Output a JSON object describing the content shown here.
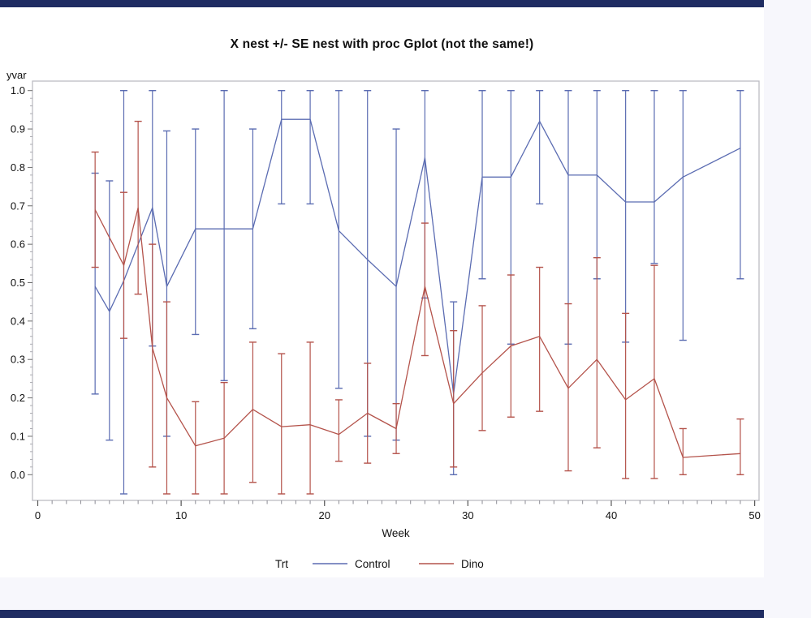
{
  "window": {
    "top_bar_color": "#1f2c62",
    "bottom_bar_color": "#1f2c62",
    "margin_color": "#f7f7fc",
    "page_color": "#ffffff"
  },
  "chart_data": {
    "type": "line",
    "title": "X nest +/- SE nest with proc Gplot (not the same!)",
    "xlabel": "Week",
    "ylabel": "yvar",
    "xlim": [
      0,
      50
    ],
    "ylim": [
      0.0,
      1.0
    ],
    "x_tick_labels": [
      "0",
      "10",
      "20",
      "30",
      "40",
      "50"
    ],
    "x_tick_values": [
      0,
      10,
      20,
      30,
      40,
      50
    ],
    "x_minor_tick_step": 1,
    "y_tick_labels": [
      "0.0",
      "0.1",
      "0.2",
      "0.3",
      "0.4",
      "0.5",
      "0.6",
      "0.7",
      "0.8",
      "0.9",
      "1.0"
    ],
    "y_tick_values": [
      0.0,
      0.1,
      0.2,
      0.3,
      0.4,
      0.5,
      0.6,
      0.7,
      0.8,
      0.9,
      1.0
    ],
    "grid": "off",
    "error_bars": "plus-minus SE with caps",
    "legend": {
      "label": "Trt",
      "position": "bottom-center"
    },
    "series": [
      {
        "name": "Control",
        "color": "#5B6CB2",
        "points": [
          {
            "week": 4,
            "y": 0.49,
            "lo": 0.21,
            "hi": 0.785
          },
          {
            "week": 5,
            "y": 0.425,
            "lo": 0.09,
            "hi": 0.765
          },
          {
            "week": 6,
            "y": 0.505,
            "lo": -0.05,
            "hi": 1.0
          },
          {
            "week": 8,
            "y": 0.695,
            "lo": 0.335,
            "hi": 1.0
          },
          {
            "week": 9,
            "y": 0.49,
            "lo": 0.1,
            "hi": 0.895
          },
          {
            "week": 11,
            "y": 0.64,
            "lo": 0.365,
            "hi": 0.9
          },
          {
            "week": 13,
            "y": 0.64,
            "lo": 0.245,
            "hi": 1.0
          },
          {
            "week": 15,
            "y": 0.64,
            "lo": 0.38,
            "hi": 0.9
          },
          {
            "week": 17,
            "y": 0.925,
            "lo": 0.705,
            "hi": 1.0
          },
          {
            "week": 19,
            "y": 0.925,
            "lo": 0.705,
            "hi": 1.0
          },
          {
            "week": 21,
            "y": 0.635,
            "lo": 0.225,
            "hi": 1.0
          },
          {
            "week": 23,
            "y": 0.56,
            "lo": 0.1,
            "hi": 1.0
          },
          {
            "week": 25,
            "y": 0.49,
            "lo": 0.09,
            "hi": 0.9
          },
          {
            "week": 27,
            "y": 0.825,
            "lo": 0.46,
            "hi": 1.0
          },
          {
            "week": 29,
            "y": 0.21,
            "lo": 0.0,
            "hi": 0.45
          },
          {
            "week": 31,
            "y": 0.775,
            "lo": 0.51,
            "hi": 1.0
          },
          {
            "week": 33,
            "y": 0.775,
            "lo": 0.34,
            "hi": 1.0
          },
          {
            "week": 35,
            "y": 0.92,
            "lo": 0.705,
            "hi": 1.0
          },
          {
            "week": 37,
            "y": 0.78,
            "lo": 0.34,
            "hi": 1.0
          },
          {
            "week": 39,
            "y": 0.78,
            "lo": 0.51,
            "hi": 1.0
          },
          {
            "week": 41,
            "y": 0.71,
            "lo": 0.345,
            "hi": 1.0
          },
          {
            "week": 43,
            "y": 0.71,
            "lo": 0.55,
            "hi": 1.0
          },
          {
            "week": 45,
            "y": 0.775,
            "lo": 0.35,
            "hi": 1.0
          },
          {
            "week": 49,
            "y": 0.85,
            "lo": 0.51,
            "hi": 1.0
          }
        ]
      },
      {
        "name": "Dino",
        "color": "#B4534B",
        "points": [
          {
            "week": 4,
            "y": 0.69,
            "lo": 0.54,
            "hi": 0.84
          },
          {
            "week": 6,
            "y": 0.545,
            "lo": 0.355,
            "hi": 0.735
          },
          {
            "week": 7,
            "y": 0.695,
            "lo": 0.47,
            "hi": 0.92
          },
          {
            "week": 8,
            "y": 0.33,
            "lo": 0.02,
            "hi": 0.6
          },
          {
            "week": 9,
            "y": 0.2,
            "lo": -0.05,
            "hi": 0.45
          },
          {
            "week": 11,
            "y": 0.075,
            "lo": -0.05,
            "hi": 0.19
          },
          {
            "week": 13,
            "y": 0.095,
            "lo": -0.05,
            "hi": 0.24
          },
          {
            "week": 15,
            "y": 0.17,
            "lo": -0.02,
            "hi": 0.345
          },
          {
            "week": 17,
            "y": 0.125,
            "lo": -0.05,
            "hi": 0.315
          },
          {
            "week": 19,
            "y": 0.13,
            "lo": -0.05,
            "hi": 0.345
          },
          {
            "week": 21,
            "y": 0.105,
            "lo": 0.035,
            "hi": 0.195
          },
          {
            "week": 23,
            "y": 0.16,
            "lo": 0.03,
            "hi": 0.29
          },
          {
            "week": 25,
            "y": 0.12,
            "lo": 0.055,
            "hi": 0.185
          },
          {
            "week": 27,
            "y": 0.49,
            "lo": 0.31,
            "hi": 0.655
          },
          {
            "week": 29,
            "y": 0.185,
            "lo": 0.02,
            "hi": 0.375
          },
          {
            "week": 31,
            "y": 0.265,
            "lo": 0.115,
            "hi": 0.44
          },
          {
            "week": 33,
            "y": 0.335,
            "lo": 0.15,
            "hi": 0.52
          },
          {
            "week": 35,
            "y": 0.36,
            "lo": 0.165,
            "hi": 0.54
          },
          {
            "week": 37,
            "y": 0.225,
            "lo": 0.01,
            "hi": 0.445
          },
          {
            "week": 39,
            "y": 0.3,
            "lo": 0.07,
            "hi": 0.565
          },
          {
            "week": 41,
            "y": 0.195,
            "lo": -0.01,
            "hi": 0.42
          },
          {
            "week": 43,
            "y": 0.25,
            "lo": -0.01,
            "hi": 0.545
          },
          {
            "week": 45,
            "y": 0.045,
            "lo": 0.0,
            "hi": 0.12
          },
          {
            "week": 49,
            "y": 0.055,
            "lo": 0.0,
            "hi": 0.145
          }
        ]
      }
    ]
  }
}
